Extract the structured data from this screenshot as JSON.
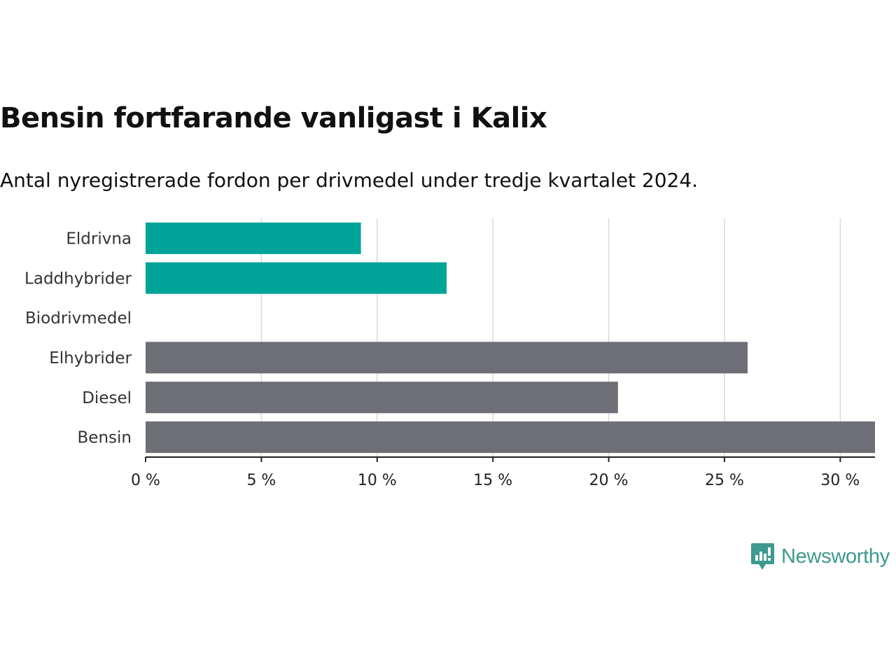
{
  "header": {
    "title": "Bensin fortfarande vanligast i Kalix",
    "subtitle": "Antal nyregistrerade fordon per drivmedel under tredje kvartalet 2024."
  },
  "brand": {
    "name": "Newsworthy",
    "icon": "newsworthy-logo-icon",
    "color": "#3d9a8e"
  },
  "chart_data": {
    "type": "bar",
    "orientation": "horizontal",
    "categories": [
      "Eldrivna",
      "Laddhybrider",
      "Biodrivmedel",
      "Elhybrider",
      "Diesel",
      "Bensin"
    ],
    "values": [
      9.3,
      13.0,
      0,
      26.0,
      20.4,
      31.5
    ],
    "colors": [
      "#00a499",
      "#00a499",
      "#6e6e76",
      "#6e6e76",
      "#6e6e76",
      "#6e6e76"
    ],
    "xlim": [
      0,
      31.5
    ],
    "xticks": [
      0,
      5,
      10,
      15,
      20,
      25,
      30
    ],
    "xtick_labels": [
      "0 %",
      "5 %",
      "10 %",
      "15 %",
      "20 %",
      "25 %",
      "30 %"
    ],
    "grid": "vertical",
    "legend": "none"
  }
}
